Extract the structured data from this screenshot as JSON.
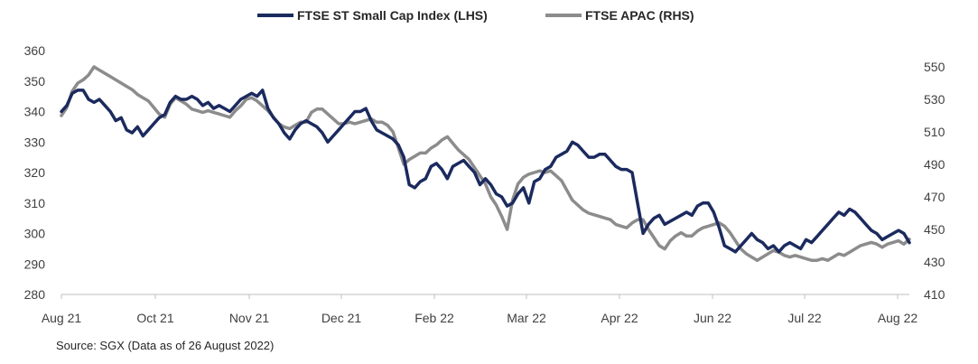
{
  "chart_data": {
    "type": "line",
    "x_labels": [
      "Aug 21",
      "Oct 21",
      "Nov 21",
      "Dec 21",
      "Feb 22",
      "Mar 22",
      "Apr 22",
      "Jun 22",
      "Jul 22",
      "Aug 22"
    ],
    "y_left": {
      "ylim": [
        280,
        360
      ],
      "ticks": [
        "280",
        "290",
        "300",
        "310",
        "320",
        "330",
        "340",
        "350",
        "360"
      ]
    },
    "y_right": {
      "ylim": [
        410,
        560
      ],
      "ticks": [
        "410",
        "430",
        "450",
        "470",
        "490",
        "510",
        "530",
        "550"
      ]
    },
    "series": [
      {
        "name": "FTSE ST Small Cap Index (LHS)",
        "axis": "left",
        "color": "#1b2a5e",
        "values": [
          340,
          342,
          346,
          347,
          347,
          344,
          343,
          344,
          342,
          340,
          337,
          338,
          334,
          333,
          335,
          332,
          334,
          336,
          338,
          339,
          343,
          345,
          344,
          344,
          345,
          344,
          342,
          343,
          341,
          342,
          341,
          340,
          342,
          344,
          345,
          346,
          345,
          347,
          341,
          338,
          336,
          333,
          331,
          334,
          336,
          337,
          336,
          335,
          333,
          330,
          332,
          334,
          336,
          338,
          340,
          340,
          341,
          337,
          334,
          333,
          332,
          331,
          329,
          325,
          316,
          315,
          317,
          318,
          322,
          323,
          321,
          318,
          322,
          323,
          324,
          322,
          320,
          316,
          318,
          316,
          313,
          312,
          309,
          310,
          313,
          315,
          310,
          317,
          318,
          321,
          322,
          325,
          326,
          327,
          330,
          329,
          327,
          325,
          325,
          326,
          326,
          324,
          322,
          321,
          321,
          320,
          310,
          300,
          303,
          305,
          306,
          303,
          304,
          305,
          306,
          307,
          306,
          309,
          310,
          310,
          307,
          302,
          296,
          295,
          294,
          296,
          298,
          300,
          298,
          297,
          295,
          296,
          294,
          296,
          297,
          296,
          295,
          298,
          297,
          299,
          301,
          303,
          305,
          307,
          306,
          308,
          307,
          305,
          303,
          301,
          300,
          298,
          299,
          300,
          301,
          300,
          297
        ]
      },
      {
        "name": "FTSE APAC (RHS)",
        "axis": "right",
        "color": "#8c8c8c",
        "values": [
          520,
          525,
          535,
          540,
          542,
          545,
          550,
          548,
          546,
          544,
          542,
          540,
          538,
          536,
          533,
          531,
          529,
          525,
          521,
          519,
          527,
          531,
          529,
          527,
          524,
          523,
          522,
          523,
          522,
          521,
          520,
          519,
          523,
          526,
          530,
          531,
          529,
          526,
          523,
          519,
          515,
          513,
          512,
          514,
          516,
          516,
          522,
          524,
          524,
          521,
          518,
          515,
          515,
          516,
          515,
          516,
          517,
          518,
          516,
          516,
          514,
          510,
          500,
          490,
          493,
          495,
          497,
          497,
          500,
          502,
          505,
          507,
          503,
          499,
          496,
          493,
          488,
          483,
          478,
          470,
          465,
          458,
          450,
          468,
          478,
          482,
          484,
          485,
          486,
          485,
          486,
          483,
          480,
          474,
          468,
          465,
          462,
          460,
          459,
          458,
          457,
          456,
          453,
          452,
          451,
          454,
          456,
          456,
          450,
          445,
          440,
          438,
          443,
          446,
          448,
          446,
          446,
          449,
          451,
          452,
          453,
          454,
          452,
          448,
          443,
          438,
          435,
          433,
          431,
          433,
          435,
          437,
          436,
          434,
          433,
          434,
          433,
          432,
          431,
          431,
          432,
          431,
          433,
          435,
          434,
          436,
          438,
          440,
          441,
          442,
          441,
          439,
          441,
          442,
          443,
          441,
          444
        ]
      }
    ]
  },
  "legend": [
    {
      "label": "FTSE ST Small Cap Index (LHS)",
      "color": "#1b2a5e"
    },
    {
      "label": "FTSE APAC (RHS)",
      "color": "#8c8c8c"
    }
  ],
  "source_note": "Source: SGX (Data as of 26 August 2022)"
}
